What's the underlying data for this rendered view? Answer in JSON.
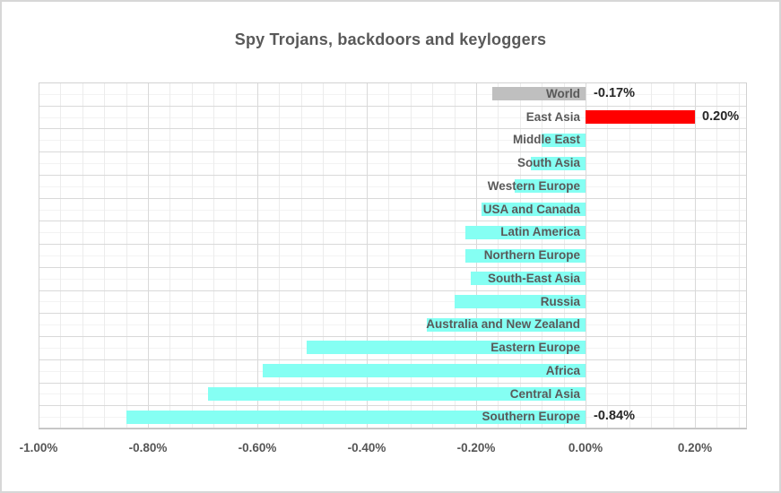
{
  "window": {
    "background": "#FFFFFF",
    "border_color": "#D7D7D7"
  },
  "chart_data": {
    "type": "bar",
    "orientation": "horizontal",
    "title": "Spy Trojans, backdoors and keyloggers",
    "xlabel": "",
    "ylabel": "",
    "unit": "%",
    "legend": "none",
    "grid": "major+minor",
    "categories": [
      "World",
      "East Asia",
      "Middle East",
      "South Asia",
      "Western Europe",
      "USA and Canada",
      "Latin America",
      "Northern Europe",
      "South-East Asia",
      "Russia",
      "Australia and New Zealand",
      "Eastern Europe",
      "Africa",
      "Central Asia",
      "Southern Europe"
    ],
    "values": [
      -0.17,
      0.2,
      -0.08,
      -0.1,
      -0.13,
      -0.19,
      -0.22,
      -0.22,
      -0.21,
      -0.24,
      -0.29,
      -0.51,
      -0.59,
      -0.69,
      -0.84
    ],
    "data_labels": [
      "-0.17%",
      "0.20%",
      null,
      null,
      null,
      null,
      null,
      null,
      null,
      null,
      null,
      null,
      null,
      null,
      "-0.84%"
    ],
    "colors": {
      "default_bar": "#85FFF3",
      "world_bar": "#BFBFBF",
      "highlight_bar": "#FF0000",
      "title_text": "#595959",
      "category_text": "#595959",
      "data_label_text": "#262626",
      "axis_text": "#565656",
      "grid_major": "#D9D9D9",
      "grid_minor": "#EFEFEF"
    },
    "bar_color_overrides": {
      "0": "#BFBFBF",
      "1": "#FF0000"
    },
    "xlim": [
      -1.0,
      0.295
    ],
    "x_ticks": [
      {
        "value": -1.0,
        "label": "-1.00%"
      },
      {
        "value": -0.8,
        "label": "-0.80%"
      },
      {
        "value": -0.6,
        "label": "-0.60%"
      },
      {
        "value": -0.4,
        "label": "-0.40%"
      },
      {
        "value": -0.2,
        "label": "-0.20%"
      },
      {
        "value": 0.0,
        "label": "0.00%"
      },
      {
        "value": 0.2,
        "label": "0.20%"
      }
    ],
    "minor_tick_step": 0.04
  }
}
